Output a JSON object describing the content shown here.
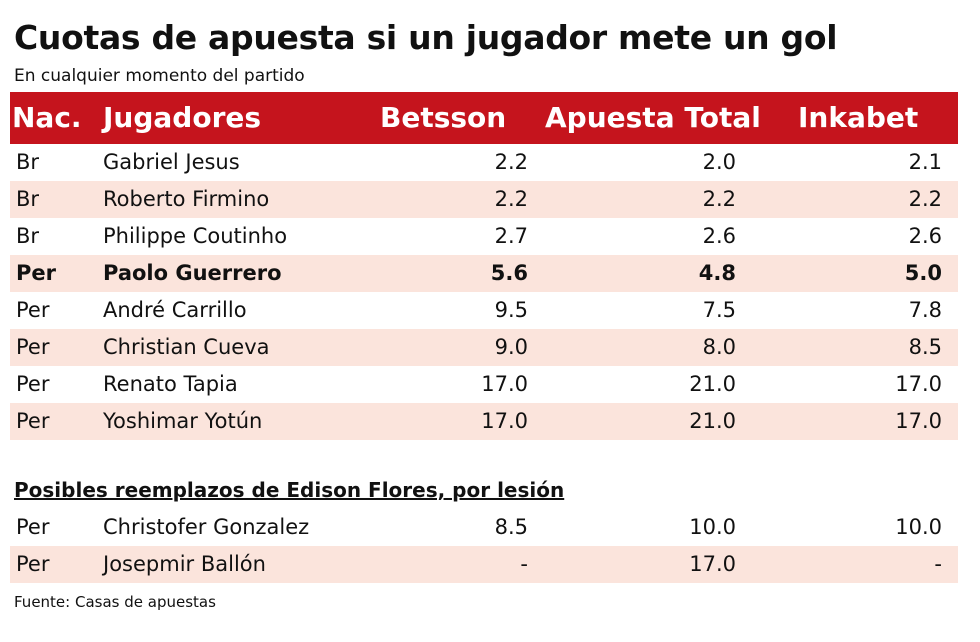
{
  "title": "Cuotas de apuesta si un jugador mete un gol",
  "subtitle": "En cualquier momento del partido",
  "header": {
    "nac": "Nac.",
    "jugadores": "Jugadores",
    "betsson": "Betsson",
    "apuesta_total": "Apuesta Total",
    "inkabet": "Inkabet"
  },
  "colors": {
    "header_bg": "#c5141d",
    "band_bg": "#fbe4dc"
  },
  "players": [
    {
      "nac": "Br",
      "name": "Gabriel Jesus",
      "betsson": "2.2",
      "apuesta_total": "2.0",
      "inkabet": "2.1"
    },
    {
      "nac": "Br",
      "name": "Roberto Firmino",
      "betsson": "2.2",
      "apuesta_total": "2.2",
      "inkabet": "2.2"
    },
    {
      "nac": "Br",
      "name": "Philippe Coutinho",
      "betsson": "2.7",
      "apuesta_total": "2.6",
      "inkabet": "2.6"
    },
    {
      "nac": "Per",
      "name": "Paolo Guerrero",
      "betsson": "5.6",
      "apuesta_total": "4.8",
      "inkabet": "5.0"
    },
    {
      "nac": "Per",
      "name": "André Carrillo",
      "betsson": "9.5",
      "apuesta_total": "7.5",
      "inkabet": "7.8"
    },
    {
      "nac": "Per",
      "name": "Christian Cueva",
      "betsson": "9.0",
      "apuesta_total": "8.0",
      "inkabet": "8.5"
    },
    {
      "nac": "Per",
      "name": "Renato Tapia",
      "betsson": "17.0",
      "apuesta_total": "21.0",
      "inkabet": "17.0"
    },
    {
      "nac": "Per",
      "name": "Yoshimar Yotún",
      "betsson": "17.0",
      "apuesta_total": "21.0",
      "inkabet": "17.0"
    }
  ],
  "replacements_title": "Posibles reemplazos de Edison Flores, por lesión",
  "replacements": [
    {
      "nac": "Per",
      "name": "Christofer Gonzalez",
      "betsson": "8.5",
      "apuesta_total": "10.0",
      "inkabet": "10.0"
    },
    {
      "nac": "Per",
      "name": "Josepmir Ballón",
      "betsson": "-",
      "apuesta_total": "17.0",
      "inkabet": "-"
    }
  ],
  "source": "Fuente: Casas de apuestas"
}
